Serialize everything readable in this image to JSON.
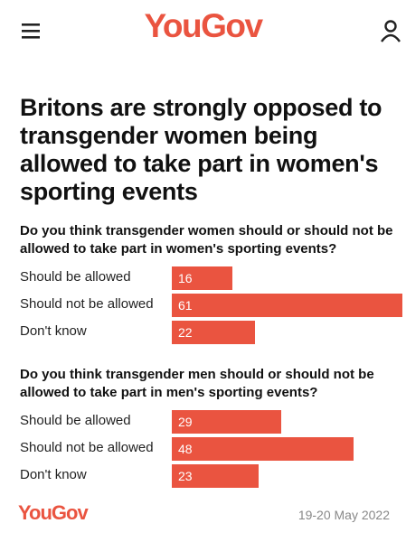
{
  "header": {
    "logo": "YouGov"
  },
  "headline": "Britons are strongly opposed to transgender women being allowed to take part in women's sporting events",
  "chart_data": [
    {
      "type": "bar",
      "title": "Do you think transgender women should or should not be allowed to take part in women's sporting events?",
      "categories": [
        "Should be allowed",
        "Should not be allowed",
        "Don't know"
      ],
      "values": [
        16,
        61,
        22
      ],
      "color": "#ea5440"
    },
    {
      "type": "bar",
      "title": "Do you think transgender men should or should not be allowed to take part in men's sporting events?",
      "categories": [
        "Should be allowed",
        "Should not be allowed",
        "Don't know"
      ],
      "values": [
        29,
        48,
        23
      ],
      "color": "#ea5440"
    }
  ],
  "footer": {
    "logo": "YouGov",
    "date": "19-20 May 2022"
  }
}
